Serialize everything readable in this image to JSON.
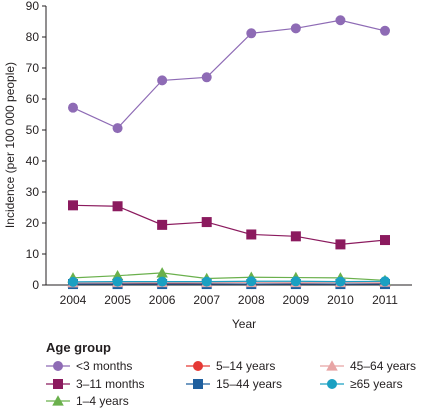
{
  "chart_data": {
    "type": "line",
    "xlabel": "Year",
    "ylabel": "Incidence (per 100 000 people)",
    "x": [
      2004,
      2005,
      2006,
      2007,
      2008,
      2009,
      2010,
      2011
    ],
    "xlim": [
      2004,
      2011
    ],
    "ylim": [
      0,
      90
    ],
    "yticks": [
      0,
      10,
      20,
      30,
      40,
      50,
      60,
      70,
      80,
      90
    ],
    "grid": false,
    "legend_title": "Age group",
    "legend_position": "bottom",
    "series": [
      {
        "name": "<3 months",
        "color": "#8e6bb5",
        "marker": "circle",
        "values": [
          57.2,
          50.6,
          66.0,
          67.0,
          81.2,
          82.8,
          85.4,
          82.0
        ]
      },
      {
        "name": "3–11 months",
        "color": "#8b1a5e",
        "marker": "square",
        "values": [
          25.7,
          25.4,
          19.4,
          20.3,
          16.3,
          15.7,
          13.1,
          14.5
        ]
      },
      {
        "name": "1–4 years",
        "color": "#6ab04c",
        "marker": "triangle",
        "values": [
          2.3,
          3.0,
          3.9,
          2.1,
          2.5,
          2.4,
          2.3,
          1.5
        ]
      },
      {
        "name": "5–14 years",
        "color": "#e53935",
        "marker": "circle",
        "values": [
          0.4,
          0.4,
          0.5,
          0.4,
          0.3,
          0.4,
          0.3,
          0.4
        ]
      },
      {
        "name": "15–44 years",
        "color": "#1f5f9e",
        "marker": "square",
        "values": [
          0.3,
          0.3,
          0.3,
          0.3,
          0.3,
          0.3,
          0.3,
          0.3
        ]
      },
      {
        "name": "45–64 years",
        "color": "#e8a5a5",
        "marker": "triangle",
        "values": [
          0.7,
          0.8,
          0.8,
          0.8,
          0.8,
          0.8,
          0.8,
          0.9
        ]
      },
      {
        "name": "≥65 years",
        "color": "#1aa0c2",
        "marker": "circle",
        "values": [
          1.0,
          1.1,
          1.1,
          1.1,
          1.2,
          1.2,
          1.1,
          1.2
        ]
      }
    ]
  }
}
